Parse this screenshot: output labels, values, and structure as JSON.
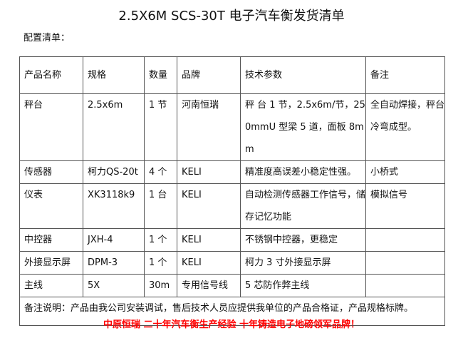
{
  "title": "2.5X6M SCS-30T 电子汽车衡发货清单",
  "subtitle": "配置清单：",
  "table": {
    "headers": [
      "产品名称",
      "规格",
      "数量",
      "品牌",
      "技术参数",
      "备注"
    ],
    "rows": [
      [
        "秤台",
        "2.5x6m",
        "1 节",
        "河南恒瑞",
        "秤 台 1 节，2.5x6m/节，250mmU 型梁 5 道，面板 8mm",
        "全自动焊接，秤台冷弯成型。"
      ],
      [
        "传感器",
        "柯力QS-20t",
        "4 个",
        "KELI",
        "精准度高误差小稳定性强。",
        "小桥式"
      ],
      [
        "仪表",
        "XK3118k9",
        "1 台",
        "KELI",
        "自动检测传感器工作信号，储存记忆功能",
        "模拟信号"
      ],
      [
        "中控器",
        "JXH-4",
        "1 个",
        "KELI",
        "不锈钢中控器，更稳定",
        ""
      ],
      [
        "外接显示屏",
        "DPM-3",
        "1 个",
        "KELI",
        "柯力 3 寸外接显示屏",
        ""
      ],
      [
        "主线",
        "5X",
        "30m",
        "专用信号线",
        "5 芯防作弊主线",
        ""
      ]
    ],
    "note": "备注说明：产品由我公司安装调试，售后技术人员应提供我单位的产品合格证，产品规格标牌。"
  },
  "footer": "中原恒瑞 二十年汽车衡生产经验 十年铸造电子地磅领军品牌！",
  "colors": {
    "footer": "#ff0000",
    "border": "#555555"
  }
}
